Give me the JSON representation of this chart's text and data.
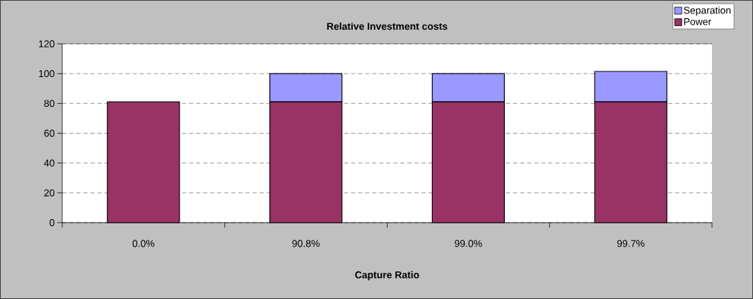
{
  "chart_data": {
    "type": "bar",
    "title": "Relative Investment costs",
    "xlabel": "Capture Ratio",
    "categories": [
      "0.0%",
      "90.8%",
      "99.0%",
      "99.7%"
    ],
    "stacked": true,
    "series": [
      {
        "name": "Power",
        "color": "#993366",
        "values": [
          81,
          81,
          81,
          81
        ]
      },
      {
        "name": "Separation",
        "color": "#9999ff",
        "values": [
          0,
          19,
          19,
          20.5
        ]
      }
    ],
    "ylim": [
      0,
      120
    ],
    "yticks": [
      0,
      20,
      40,
      60,
      80,
      100,
      120
    ],
    "grid": "y",
    "line_style": "dashed",
    "legend": "top right"
  }
}
